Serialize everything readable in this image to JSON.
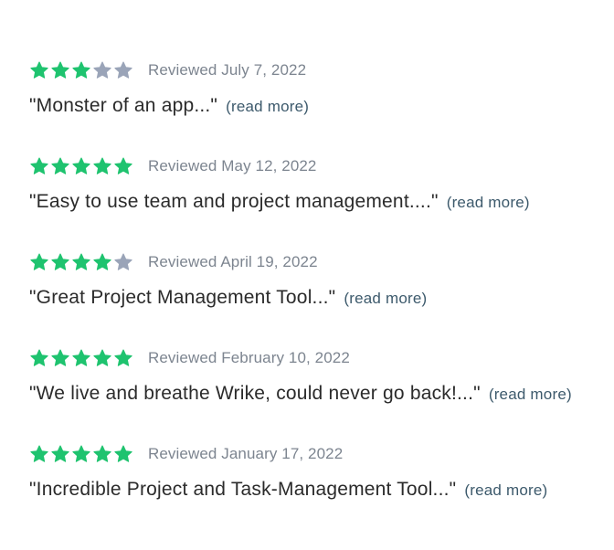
{
  "colors": {
    "star_filled": "#1fc36f",
    "star_empty": "#9aa4b8",
    "meta_text": "#7d8590",
    "quote_text": "#2b2b2b",
    "link": "#3d5a6c"
  },
  "reviews": [
    {
      "rating": 3,
      "reviewed": "Reviewed July 7, 2022",
      "quote": "\"Monster of an app...\"",
      "read_more": "(read more)"
    },
    {
      "rating": 5,
      "reviewed": "Reviewed May 12, 2022",
      "quote": "\"Easy to use team and project management....\"",
      "read_more": "(read more)"
    },
    {
      "rating": 4,
      "reviewed": "Reviewed April 19, 2022",
      "quote": "\"Great Project Management Tool...\"",
      "read_more": "(read more)"
    },
    {
      "rating": 5,
      "reviewed": "Reviewed February 10, 2022",
      "quote": "\"We live and breathe Wrike, could never go back!...\"",
      "read_more": "(read more)"
    },
    {
      "rating": 5,
      "reviewed": "Reviewed January 17, 2022",
      "quote": "\"Incredible Project and Task-Management Tool...\"",
      "read_more": "(read more)"
    }
  ]
}
